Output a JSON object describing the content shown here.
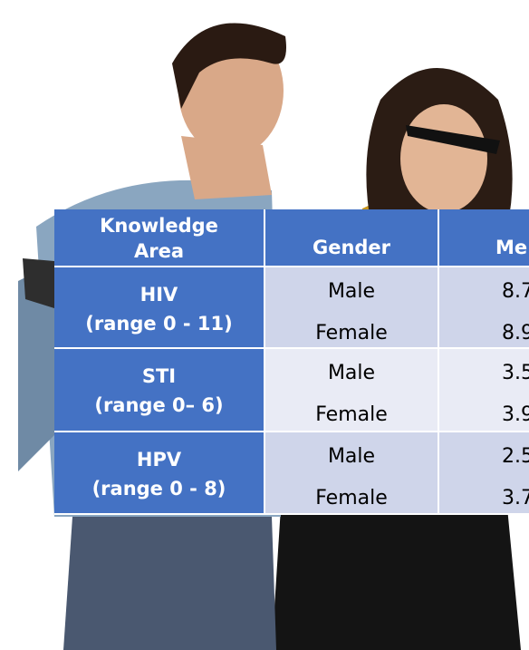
{
  "table": {
    "header": [
      "Knowledge Area",
      "Gender",
      "Me"
    ],
    "groups": [
      {
        "title": "HIV",
        "range": "(range 0 - 11)",
        "rows": [
          {
            "gender": "Male",
            "mean": "8.7"
          },
          {
            "gender": "Female",
            "mean": "8.9"
          }
        ]
      },
      {
        "title": "STI",
        "range": "(range 0– 6)",
        "rows": [
          {
            "gender": "Male",
            "mean": "3.5"
          },
          {
            "gender": "Female",
            "mean": "3.9"
          }
        ]
      },
      {
        "title": "HPV",
        "range": "(range 0 - 8)",
        "rows": [
          {
            "gender": "Male",
            "mean": "2.5"
          },
          {
            "gender": "Female",
            "mean": "3.7"
          }
        ]
      }
    ]
  }
}
